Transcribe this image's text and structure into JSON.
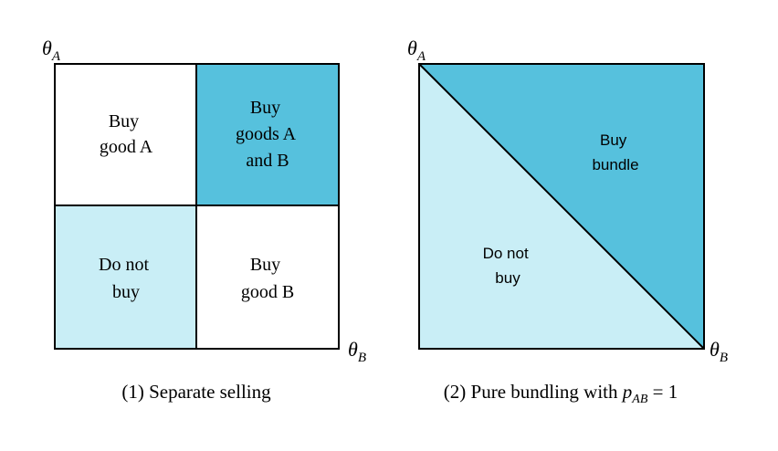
{
  "colors": {
    "dark_fill": "#56c1dd",
    "light_fill": "#c9eef6",
    "white": "#ffffff",
    "stroke": "#000000"
  },
  "panel1": {
    "axis_y": {
      "symbol": "θ",
      "sub": "A"
    },
    "axis_x": {
      "symbol": "θ",
      "sub": "B"
    },
    "regions": {
      "top_left": [
        "Buy",
        "good A"
      ],
      "top_right": [
        "Buy",
        "goods A",
        "and B"
      ],
      "bottom_left": [
        "Do not",
        "buy"
      ],
      "bottom_right": [
        "Buy",
        "good B"
      ]
    },
    "caption": "(1) Separate selling"
  },
  "panel2": {
    "axis_y": {
      "symbol": "θ",
      "sub": "A"
    },
    "axis_x": {
      "symbol": "θ",
      "sub": "B"
    },
    "regions": {
      "upper": [
        "Buy",
        "bundle"
      ],
      "lower": [
        "Do not",
        "buy"
      ]
    },
    "caption": {
      "prefix": "(2) Pure bundling with ",
      "var": "p",
      "sub": "AB",
      "suffix": " = 1"
    }
  }
}
